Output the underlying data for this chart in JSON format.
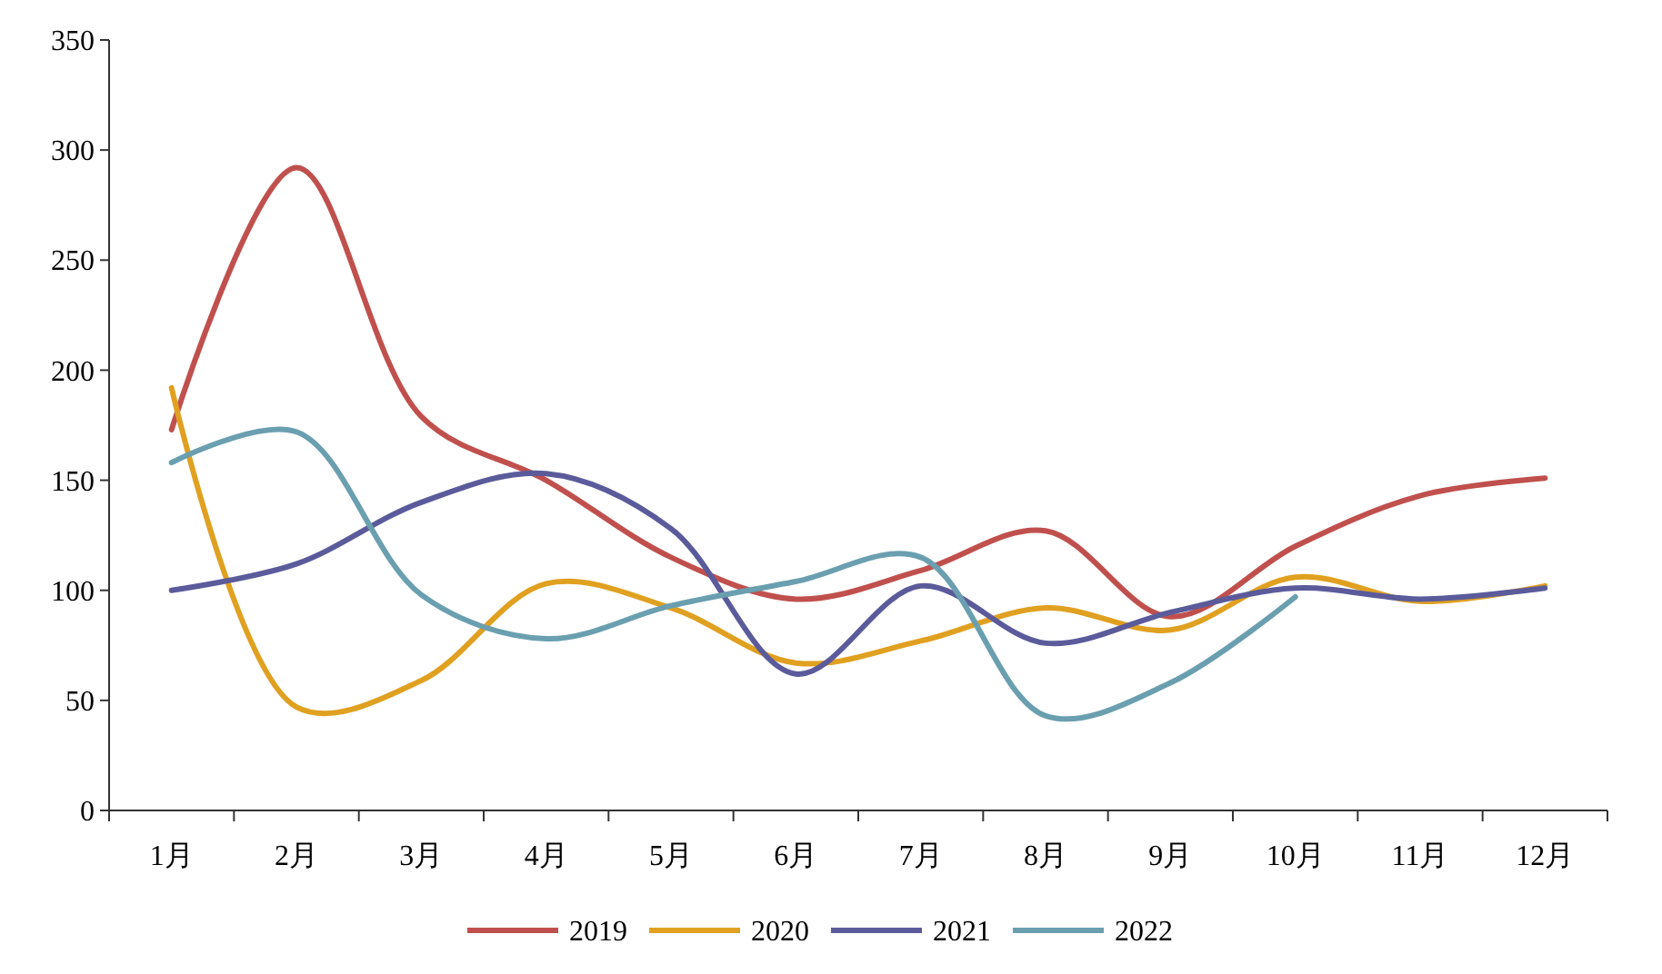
{
  "chart_data": {
    "type": "line",
    "categories": [
      "1月",
      "2月",
      "3月",
      "4月",
      "5月",
      "6月",
      "7月",
      "8月",
      "9月",
      "10月",
      "11月",
      "12月"
    ],
    "series": [
      {
        "name": "2019",
        "color": "#c0504d",
        "values": [
          173,
          292,
          179,
          150,
          115,
          96,
          109,
          127,
          88,
          120,
          143,
          151
        ]
      },
      {
        "name": "2020",
        "color": "#e0a020",
        "values": [
          192,
          47,
          59,
          103,
          92,
          67,
          77,
          92,
          82,
          106,
          95,
          102
        ]
      },
      {
        "name": "2021",
        "color": "#5b5b9b",
        "values": [
          100,
          112,
          140,
          153,
          128,
          62,
          102,
          76,
          90,
          101,
          96,
          101
        ]
      },
      {
        "name": "2022",
        "color": "#6a9fb0",
        "values": [
          158,
          172,
          98,
          78,
          93,
          104,
          115,
          43,
          58,
          97,
          null,
          null
        ]
      }
    ],
    "ylim": [
      0,
      350
    ],
    "yticks": [
      0,
      50,
      100,
      150,
      200,
      250,
      300,
      350
    ],
    "grid": false,
    "legend": "bottom",
    "marker": "none",
    "line_style": "solid"
  }
}
